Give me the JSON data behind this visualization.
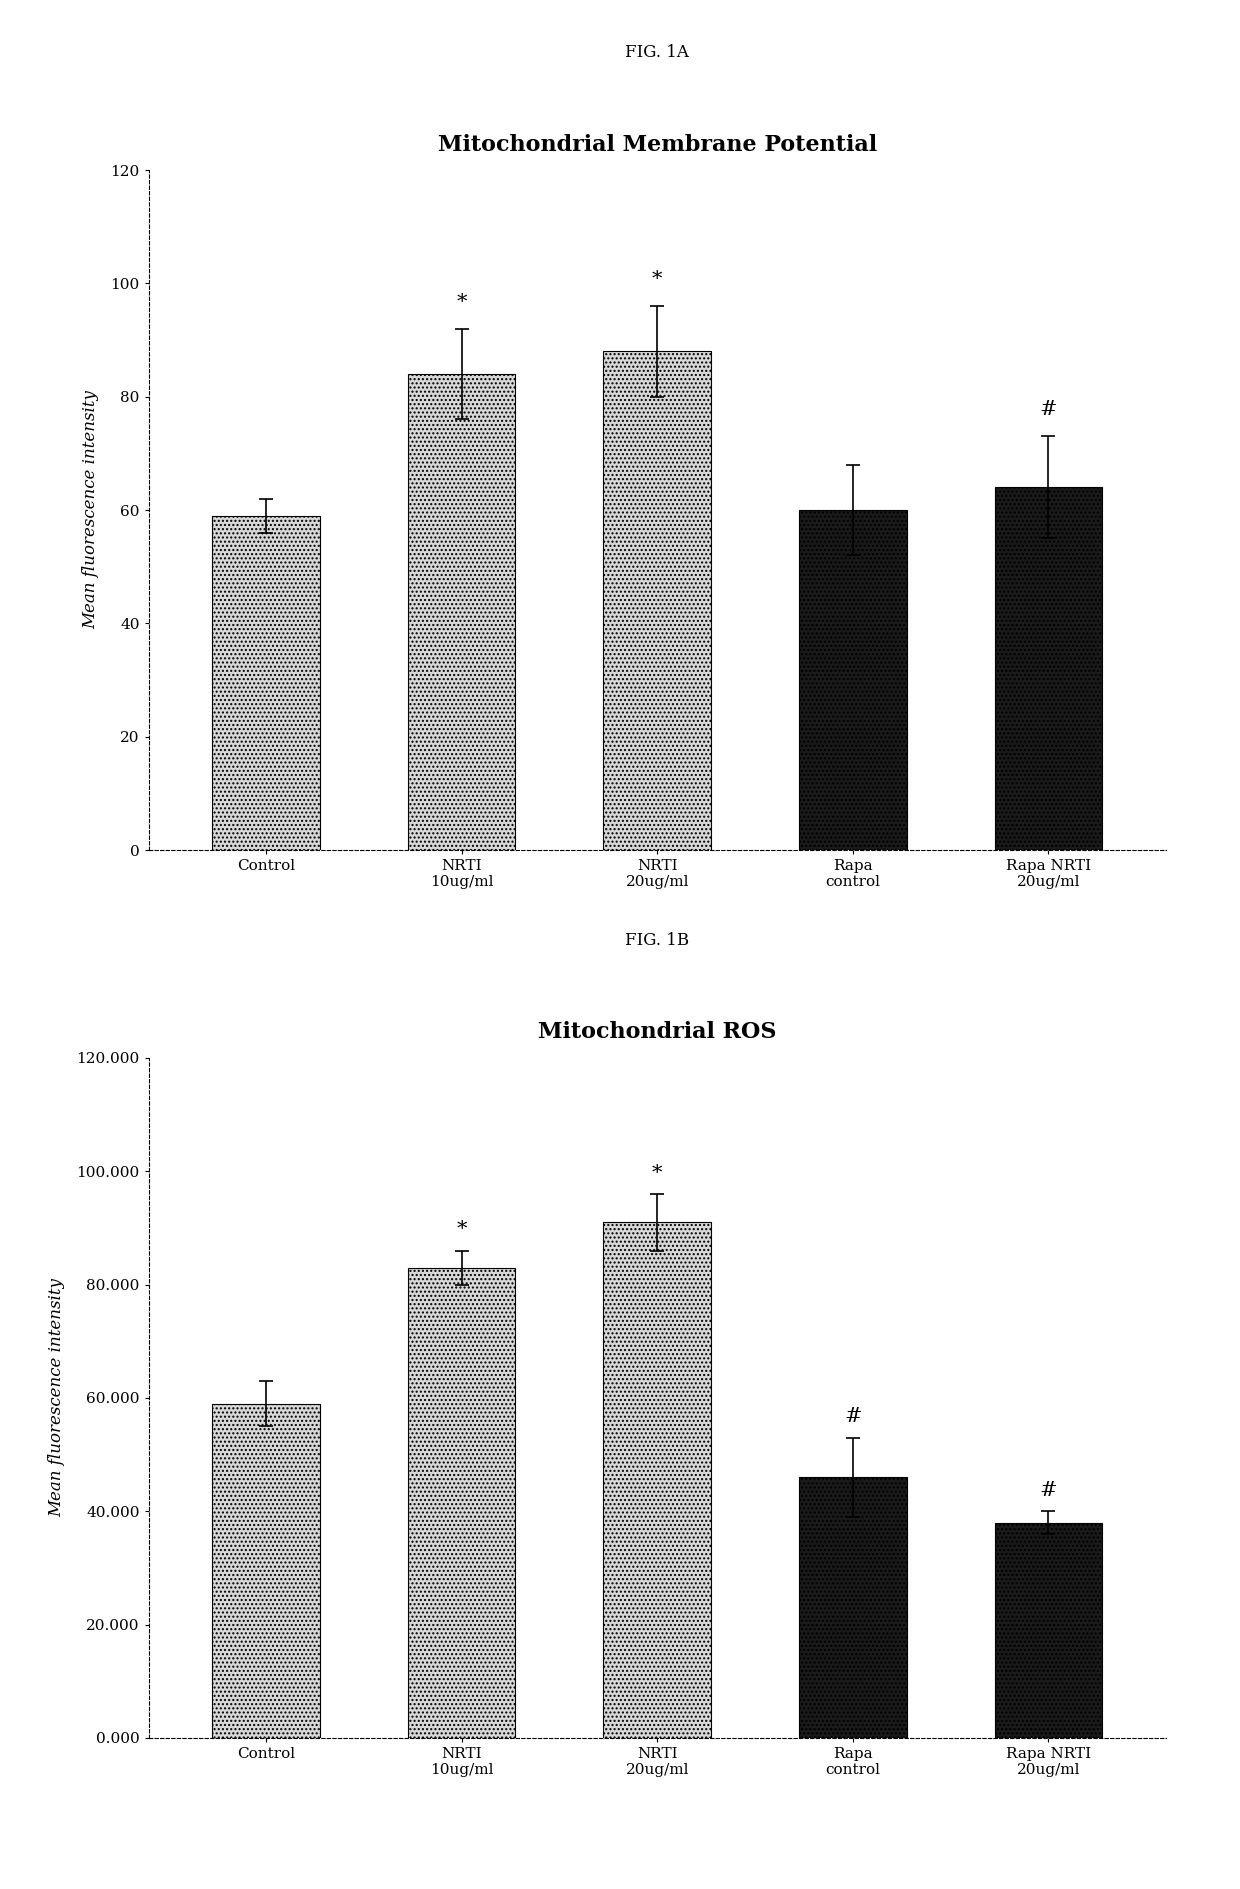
{
  "fig1a": {
    "title": "Mitochondrial Membrane Potential",
    "fig_label": "FIG. 1A",
    "ylabel": "Mean fluorescence intensity",
    "categories": [
      "Control",
      "NRTI\n10ug/ml",
      "NRTI\n20ug/ml",
      "Rapa\ncontrol",
      "Rapa NRTI\n20ug/ml"
    ],
    "values": [
      59,
      84,
      88,
      60,
      64
    ],
    "errors": [
      3,
      8,
      8,
      8,
      9
    ],
    "bar_colors": [
      "#d8d8d8",
      "#d8d8d8",
      "#d8d8d8",
      "#1a1a1a",
      "#1a1a1a"
    ],
    "bar_hatches": [
      "....",
      "....",
      "....",
      "....",
      "...."
    ],
    "hatch_colors": [
      "#aaaaaa",
      "#aaaaaa",
      "#aaaaaa",
      "#333333",
      "#333333"
    ],
    "ylim": [
      0,
      120
    ],
    "yticks": [
      0,
      20,
      40,
      60,
      80,
      100,
      120
    ],
    "ytick_labels": [
      "0",
      "20",
      "40",
      "60",
      "80",
      "100",
      "120"
    ],
    "annotations": [
      null,
      "*",
      "*",
      null,
      "#"
    ],
    "annotation_y": [
      null,
      95,
      99,
      null,
      76
    ]
  },
  "fig1b": {
    "title": "Mitochondrial ROS",
    "fig_label": "FIG. 1B",
    "ylabel": "Mean fluorescence intensity",
    "categories": [
      "Control",
      "NRTI\n10ug/ml",
      "NRTI\n20ug/ml",
      "Rapa\ncontrol",
      "Rapa NRTI\n20ug/ml"
    ],
    "values": [
      59000,
      83000,
      91000,
      46000,
      38000
    ],
    "errors": [
      4000,
      3000,
      5000,
      7000,
      2000
    ],
    "bar_colors": [
      "#d8d8d8",
      "#d8d8d8",
      "#d8d8d8",
      "#1a1a1a",
      "#1a1a1a"
    ],
    "bar_hatches": [
      "....",
      "....",
      "....",
      "....",
      "...."
    ],
    "hatch_colors": [
      "#aaaaaa",
      "#aaaaaa",
      "#aaaaaa",
      "#333333",
      "#333333"
    ],
    "ylim": [
      0,
      120000
    ],
    "yticks": [
      0,
      20000,
      40000,
      60000,
      80000,
      100000,
      120000
    ],
    "ytick_labels": [
      "0.000",
      "20.000",
      "40.000",
      "60.000",
      "80.000",
      "100.000",
      "120.000"
    ],
    "annotations": [
      null,
      "*",
      "*",
      "#",
      "#"
    ],
    "annotation_y": [
      null,
      88000,
      98000,
      55000,
      42000
    ]
  },
  "bg_color": "#ffffff",
  "font_family": "DejaVu Serif"
}
